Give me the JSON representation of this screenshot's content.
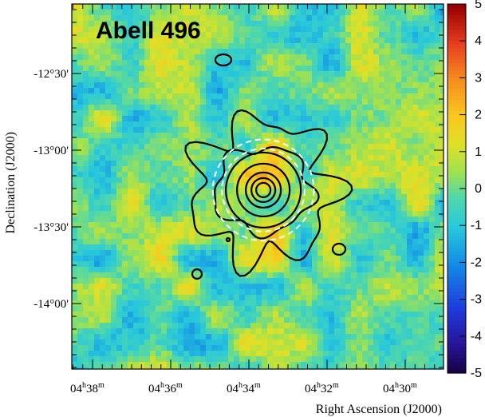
{
  "chart_data": {
    "type": "heatmap",
    "title": "Abell 496",
    "xlabel": "Right Ascension (J2000)",
    "ylabel": "Declination (J2000)",
    "x_ticks": [
      {
        "h": "04",
        "m": "38",
        "value": "04h38m"
      },
      {
        "h": "04",
        "m": "36",
        "value": "04h36m"
      },
      {
        "h": "04",
        "m": "34",
        "value": "04h34m"
      },
      {
        "h": "04",
        "m": "32",
        "value": "04h32m"
      },
      {
        "h": "04",
        "m": "30",
        "value": "04h30m"
      }
    ],
    "y_ticks": [
      {
        "label": "-12°30'",
        "value": -12.5
      },
      {
        "label": "-13°00'",
        "value": -13.0
      },
      {
        "label": "-13°30'",
        "value": -13.5
      },
      {
        "label": "-14°00'",
        "value": -14.0
      }
    ],
    "colorbar": {
      "range": [
        -5,
        5
      ],
      "ticks": [
        "5",
        "4",
        "3",
        "2",
        "1",
        "0",
        "-1",
        "-2",
        "-3",
        "-4",
        "-5"
      ],
      "colormap": "rainbow (dark blue → cyan → green → yellow → orange → red)"
    },
    "center": {
      "ra": "04h33m38s",
      "dec": -13.26
    },
    "contours": "closed contours centred on the cluster core, nested concentric levels",
    "circles": [
      {
        "style": "dashed white",
        "radius_deg": 0.33
      },
      {
        "style": "dashed white",
        "radius_deg": 0.27
      }
    ],
    "colors": {
      "contour": "#000000",
      "circle": "#ffffff",
      "frame": "#000000"
    }
  }
}
